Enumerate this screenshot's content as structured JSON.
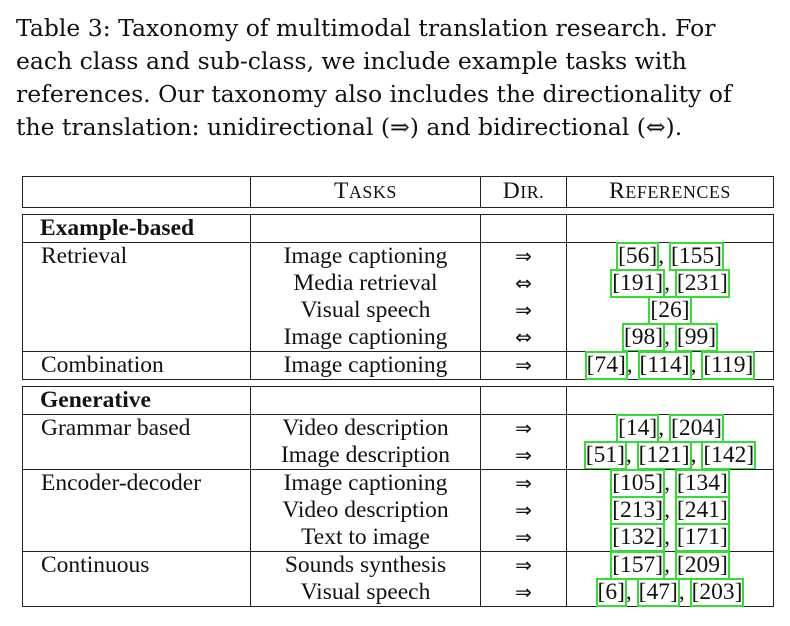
{
  "caption": {
    "line1": "Table 3: Taxonomy of multimodal translation research. For",
    "line2": "each class and sub-class, we include example tasks with",
    "line3": "references. Our taxonomy also includes the directionality of",
    "line4": "the translation: unidirectional (⇒) and bidirectional (⇔)."
  },
  "header": {
    "tasks_first": "T",
    "tasks_rest": "ASKS",
    "dir_first": "D",
    "dir_rest": "IR.",
    "refs_first": "R",
    "refs_rest": "EFERENCES"
  },
  "sections": [
    {
      "title": "Example-based",
      "groups": [
        {
          "name": "Retrieval",
          "rows": [
            {
              "task": "Image captioning",
              "dir": "⇒",
              "refs": [
                "56",
                "155"
              ]
            },
            {
              "task": "Media retrieval",
              "dir": "⇔",
              "refs": [
                "191",
                "231"
              ]
            },
            {
              "task": "Visual speech",
              "dir": "⇒",
              "refs": [
                "26"
              ]
            },
            {
              "task": "Image captioning",
              "dir": "⇔",
              "refs": [
                "98",
                "99"
              ]
            }
          ]
        },
        {
          "name": "Combination",
          "rows": [
            {
              "task": "Image captioning",
              "dir": "⇒",
              "refs": [
                "74",
                "114",
                "119"
              ]
            }
          ]
        }
      ]
    },
    {
      "title": "Generative",
      "groups": [
        {
          "name": "Grammar based",
          "rows": [
            {
              "task": "Video description",
              "dir": "⇒",
              "refs": [
                "14",
                "204"
              ]
            },
            {
              "task": "Image description",
              "dir": "⇒",
              "refs": [
                "51",
                "121",
                "142"
              ]
            }
          ]
        },
        {
          "name": "Encoder-decoder",
          "rows": [
            {
              "task": "Image captioning",
              "dir": "⇒",
              "refs": [
                "105",
                "134"
              ]
            },
            {
              "task": "Video description",
              "dir": "⇒",
              "refs": [
                "213",
                "241"
              ]
            },
            {
              "task": "Text to image",
              "dir": "⇒",
              "refs": [
                "132",
                "171"
              ]
            }
          ]
        },
        {
          "name": "Continuous",
          "rows": [
            {
              "task": "Sounds synthesis",
              "dir": "⇒",
              "refs": [
                "157",
                "209"
              ]
            },
            {
              "task": "Visual speech",
              "dir": "⇒",
              "refs": [
                "6",
                "47",
                "203"
              ]
            }
          ]
        }
      ]
    }
  ],
  "colors": {
    "link_box": "#33dd33",
    "rule": "#222222"
  }
}
